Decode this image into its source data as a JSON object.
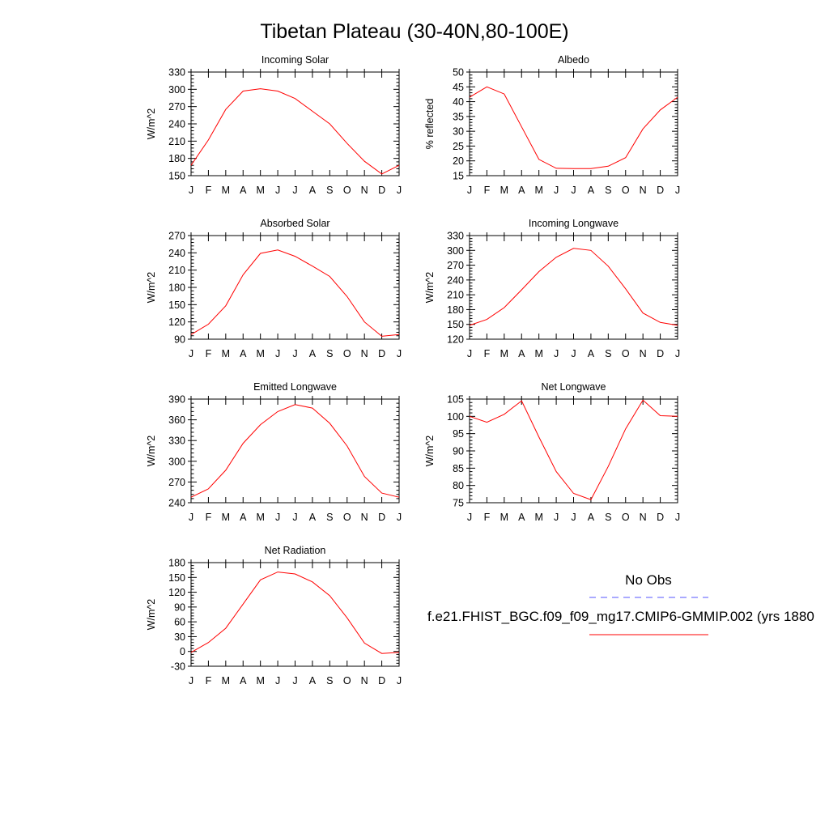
{
  "page_title": "Tibetan Plateau (30-40N,80-100E)",
  "months": [
    "J",
    "F",
    "M",
    "A",
    "M",
    "J",
    "J",
    "A",
    "S",
    "O",
    "N",
    "D",
    "J"
  ],
  "line_color": "#ff0000",
  "obs_color": "#5555ff",
  "legend": {
    "obs_label": "No Obs",
    "model_label": "f.e21.FHIST_BGC.f09_f09_mg17.CMIP6-GMMIP.002 (yrs 1880"
  },
  "chart_data": [
    {
      "id": "incoming-solar",
      "type": "line",
      "title": "Incoming Solar",
      "ylabel": "W/m^2",
      "ylim": [
        150,
        330
      ],
      "yticks": [
        150,
        180,
        210,
        240,
        270,
        300,
        330
      ],
      "values": [
        168,
        212,
        265,
        297,
        301,
        297,
        284,
        262,
        240,
        206,
        175,
        153,
        168
      ]
    },
    {
      "id": "albedo",
      "type": "line",
      "title": "Albedo",
      "ylabel": "% reflected",
      "ylim": [
        15,
        50
      ],
      "yticks": [
        15,
        20,
        25,
        30,
        35,
        40,
        45,
        50
      ],
      "values": [
        41.5,
        45,
        42.6,
        31.5,
        20.5,
        17.5,
        17.4,
        17.4,
        18.2,
        21.1,
        30.8,
        37.2,
        41.5
      ]
    },
    {
      "id": "absorbed-solar",
      "type": "line",
      "title": "Absorbed Solar",
      "ylabel": "W/m^2",
      "ylim": [
        90,
        270
      ],
      "yticks": [
        90,
        120,
        150,
        180,
        210,
        240,
        270
      ],
      "values": [
        98,
        116,
        148,
        202,
        239,
        245,
        234,
        217,
        199,
        164,
        120,
        95,
        98
      ]
    },
    {
      "id": "incoming-longwave",
      "type": "line",
      "title": "Incoming Longwave",
      "ylabel": "W/m^2",
      "ylim": [
        120,
        330
      ],
      "yticks": [
        120,
        150,
        180,
        210,
        240,
        270,
        300,
        330
      ],
      "values": [
        148,
        160,
        184,
        220,
        257,
        286,
        304,
        300,
        268,
        222,
        173,
        154,
        148
      ]
    },
    {
      "id": "emitted-longwave",
      "type": "line",
      "title": "Emitted Longwave",
      "ylabel": "W/m^2",
      "ylim": [
        240,
        390
      ],
      "yticks": [
        240,
        270,
        300,
        330,
        360,
        390
      ],
      "values": [
        248,
        260,
        287,
        326,
        353,
        372,
        382,
        377,
        355,
        322,
        278,
        254,
        248
      ]
    },
    {
      "id": "net-longwave",
      "type": "line",
      "title": "Net Longwave",
      "ylabel": "W/m^2",
      "ylim": [
        75,
        105
      ],
      "yticks": [
        75,
        80,
        85,
        90,
        95,
        100,
        105
      ],
      "values": [
        100,
        98.3,
        100.6,
        104.5,
        94,
        84,
        77.7,
        75.9,
        85.5,
        96.4,
        104.7,
        100.2,
        100
      ]
    },
    {
      "id": "net-radiation",
      "type": "line",
      "title": "Net Radiation",
      "ylabel": "W/m^2",
      "ylim": [
        -30,
        180
      ],
      "yticks": [
        -30,
        0,
        30,
        60,
        90,
        120,
        150,
        180
      ],
      "values": [
        -2,
        18,
        47,
        96,
        145,
        161,
        157,
        141,
        113,
        68,
        17,
        -4,
        -2
      ]
    }
  ]
}
